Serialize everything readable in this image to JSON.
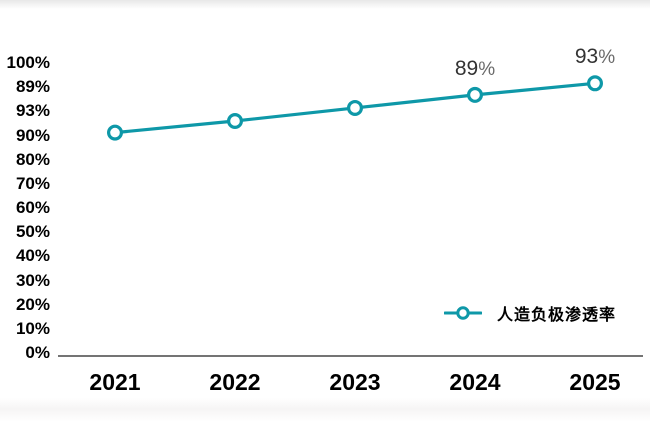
{
  "chart_data": {
    "type": "line",
    "title": "",
    "categories": [
      "2021",
      "2022",
      "2023",
      "2024",
      "2025"
    ],
    "series": [
      {
        "name": "人造负极渗透率",
        "values": [
          76,
          80,
          84.5,
          89,
          93
        ]
      }
    ],
    "point_labels": [
      "",
      "",
      "",
      "89%",
      "93%"
    ],
    "y_axis_tick_labels": [
      "100%",
      "89%",
      "93%",
      "90%",
      "80%",
      "70%",
      "60%",
      "50%",
      "40%",
      "30%",
      "20%",
      "10%",
      "0%"
    ],
    "xlabel": "",
    "ylabel": "",
    "ylim": [
      0,
      100
    ],
    "grid": false,
    "legend_position": "bottom-right",
    "line_color": "#0E98A8",
    "marker": "open-circle",
    "axis_line_color": "#474747",
    "label_color": "#000000",
    "data_label_color": "#333333"
  },
  "legend": {
    "label": "人造负极渗透率"
  }
}
